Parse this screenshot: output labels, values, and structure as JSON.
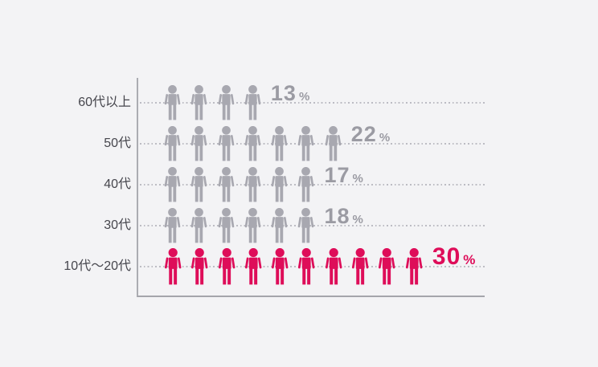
{
  "chart_data": {
    "type": "pictograph-bar",
    "orientation": "horizontal-rows",
    "percent_suffix": "%",
    "approx_percent_per_icon": 3,
    "categories": [
      "60代以上",
      "50代",
      "40代",
      "30代",
      "10代〜20代"
    ],
    "series": [
      {
        "name": "age-share-percent",
        "values": [
          13,
          22,
          17,
          18,
          30
        ]
      }
    ],
    "rows": [
      {
        "label": "60代以上",
        "value_pct": 13,
        "icon_count": 4,
        "highlight": false
      },
      {
        "label": "50代",
        "value_pct": 22,
        "icon_count": 7,
        "highlight": false
      },
      {
        "label": "40代",
        "value_pct": 17,
        "icon_count": 6,
        "highlight": false
      },
      {
        "label": "30代",
        "value_pct": 18,
        "icon_count": 6,
        "highlight": false
      },
      {
        "label": "10代〜20代",
        "value_pct": 30,
        "icon_count": 10,
        "highlight": true
      }
    ],
    "colors": {
      "background": "#f3f3f5",
      "default_icon": "#a8a8b0",
      "highlight_icon": "#de0d59",
      "default_value_text": "#9b9ba3",
      "highlight_value_text": "#de0d59",
      "category_label": "#46464d",
      "axis": "#a9aab0",
      "gridline_dots": "#bcbcc3"
    },
    "legend": "none",
    "grid": "dotted-horizontal"
  }
}
